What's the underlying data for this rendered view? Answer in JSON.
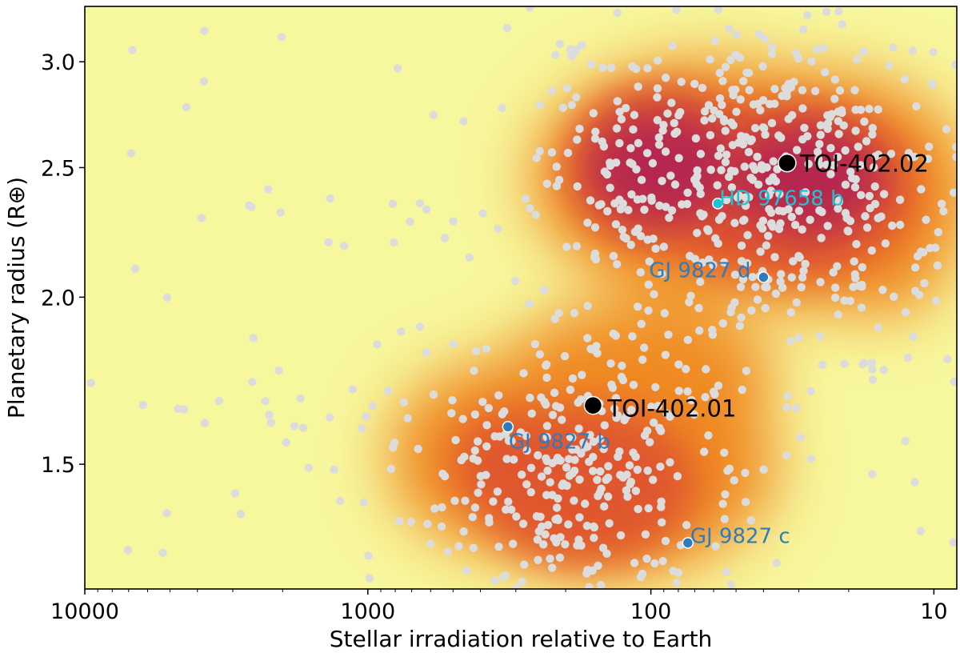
{
  "chart_data": {
    "type": "scatter",
    "title": "",
    "xlabel": "Stellar irradiation relative to Earth",
    "ylabel": "Planetary radius (R⊕)",
    "xscale": "log",
    "yscale": "log",
    "x_reversed": true,
    "xlim": [
      10000,
      8.3
    ],
    "ylim": [
      1.21,
      3.3
    ],
    "xticks": [
      10000,
      1000,
      100,
      10
    ],
    "xtick_labels": [
      "10000",
      "1000",
      "100",
      "10"
    ],
    "yticks": [
      1.5,
      2.0,
      2.5,
      3.0
    ],
    "ytick_labels": [
      "1.5",
      "2.0",
      "2.5",
      "3.0"
    ],
    "background": {
      "type": "kde-density",
      "colormap": [
        "#f7f79e",
        "#f5d142",
        "#f08a24",
        "#e0562e",
        "#b5284f"
      ],
      "peaks": [
        {
          "x": 28,
          "y": 2.45,
          "density": 1.0
        },
        {
          "x": 90,
          "y": 2.5,
          "density": 0.92
        },
        {
          "x": 180,
          "y": 1.42,
          "density": 0.72
        },
        {
          "x": 300,
          "y": 1.5,
          "density": 0.6
        }
      ]
    },
    "population": {
      "name": "Known planets",
      "color": "#dcdcdc",
      "points": []
    },
    "highlighted": [
      {
        "name": "TOI-402.02",
        "label": "TOI-402.02",
        "x": 33,
        "y": 2.52,
        "color": "#000000",
        "label_color": "#000000",
        "size": "large"
      },
      {
        "name": "TOI-402.01",
        "label": "TOI-402.01",
        "x": 160,
        "y": 1.66,
        "color": "#000000",
        "label_color": "#000000",
        "size": "large"
      },
      {
        "name": "HD 97658 b",
        "label": "HD 97658 b",
        "x": 58,
        "y": 2.35,
        "color": "#1ec3d6",
        "label_color": "#1ec3d6",
        "size": "small"
      },
      {
        "name": "GJ 9827 d",
        "label": "GJ 9827 d",
        "x": 40,
        "y": 2.07,
        "color": "#2e7bbd",
        "label_color": "#2e7bbd",
        "size": "small"
      },
      {
        "name": "GJ 9827 b",
        "label": "GJ 9827 b",
        "x": 320,
        "y": 1.6,
        "color": "#2e7bbd",
        "label_color": "#2e7bbd",
        "size": "small"
      },
      {
        "name": "GJ 9827 c",
        "label": "GJ 9827 c",
        "x": 74,
        "y": 1.31,
        "color": "#2e7bbd",
        "label_color": "#2e7bbd",
        "size": "small"
      }
    ]
  }
}
